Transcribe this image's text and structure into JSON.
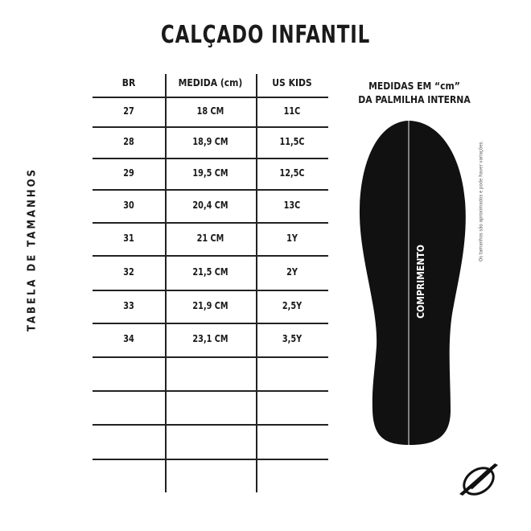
{
  "title": "CALÇADO INFANTIL",
  "side_label": "TABELA DE TAMANHOS",
  "table": {
    "headers": [
      "BR",
      "MEDIDA (cm)",
      "US KIDS"
    ],
    "rows": [
      [
        "27",
        "18 CM",
        "11C"
      ],
      [
        "28",
        "18,9 CM",
        "11,5C"
      ],
      [
        "29",
        "19,5 CM",
        "12,5C"
      ],
      [
        "30",
        "20,4 CM",
        "13C"
      ],
      [
        "31",
        "21 CM",
        "1Y"
      ],
      [
        "32",
        "21,5 CM",
        "2Y"
      ],
      [
        "33",
        "21,9 CM",
        "2,5Y"
      ],
      [
        "34",
        "23,1 CM",
        "3,5Y"
      ]
    ]
  },
  "insole": {
    "heading_line1": "MEDIDAS EM “cm”",
    "heading_line2": "DA PALMILHA INTERNA",
    "length_label": "COMPRIMENTO",
    "color": "#111111"
  },
  "note": "Os tamanhos são aproximados e pode haver variações.",
  "logo_icon": "brand-wing-logo-icon"
}
